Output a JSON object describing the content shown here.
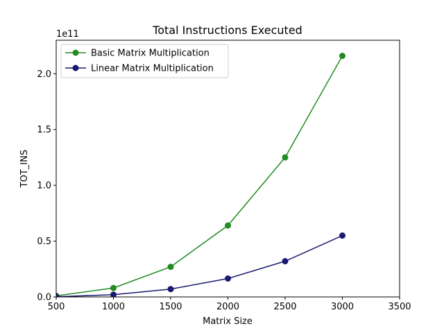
{
  "chart_data": {
    "type": "line",
    "title": "Total Instructions Executed",
    "xlabel": "Matrix Size",
    "ylabel": "TOT_INS",
    "y_offset_label": "1e11",
    "xlim": [
      500,
      3500
    ],
    "ylim": [
      0,
      230000000000.0
    ],
    "x_ticks": [
      500,
      1000,
      1500,
      2000,
      2500,
      3000,
      3500
    ],
    "y_ticks": [
      0,
      50000000000.0,
      100000000000.0,
      150000000000.0,
      200000000000.0
    ],
    "y_tick_labels": [
      "0.0",
      "0.5",
      "1.0",
      "1.5",
      "2.0"
    ],
    "legend_position": "upper-left",
    "grid": false,
    "x": [
      500,
      1000,
      1500,
      2000,
      2500,
      3000
    ],
    "series": [
      {
        "name": "Basic Matrix Multiplication",
        "color": "#228B22",
        "values": [
          1000000000.0,
          8000000000.0,
          27000000000.0,
          64000000000.0,
          125000000000.0,
          216000000000.0
        ]
      },
      {
        "name": "Linear Matrix Multiplication",
        "color": "#191970",
        "values": [
          150000000.0,
          2000000000.0,
          7000000000.0,
          16500000000.0,
          32000000000.0,
          55000000000.0
        ]
      }
    ]
  }
}
